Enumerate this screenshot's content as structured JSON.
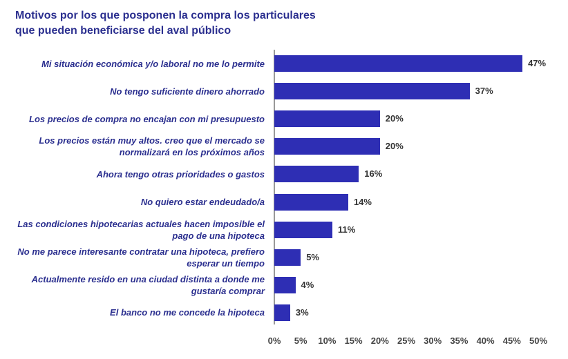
{
  "chart_data": {
    "type": "bar",
    "orientation": "horizontal",
    "title": "Motivos por los que posponen la compra los particulares que pueden beneficiarse del aval público",
    "categories": [
      "Mi situación económica y/o laboral no me lo permite",
      "No tengo suficiente dinero ahorrado",
      "Los precios de compra no encajan con mi presupuesto",
      "Los precios están muy altos. creo que el mercado se normalizará en los próximos años",
      "Ahora tengo otras prioridades o gastos",
      "No quiero estar endeudado/a",
      "Las condiciones hipotecarias actuales hacen imposible el pago de una hipoteca",
      "No me parece interesante contratar una hipoteca, prefiero esperar un tiempo",
      "Actualmente resido en una ciudad distinta a donde me gustaría comprar",
      "El banco no me concede la hipoteca"
    ],
    "values": [
      47,
      37,
      20,
      20,
      16,
      14,
      11,
      5,
      4,
      3
    ],
    "value_labels": [
      "47%",
      "37%",
      "20%",
      "20%",
      "16%",
      "14%",
      "11%",
      "5%",
      "4%",
      "3%"
    ],
    "color": "#2e2eb4",
    "xlim": [
      0,
      50
    ],
    "xticks": [
      {
        "value": 0,
        "label": "0%"
      },
      {
        "value": 5,
        "label": "5%"
      },
      {
        "value": 10,
        "label": "10%"
      },
      {
        "value": 15,
        "label": "15%"
      },
      {
        "value": 20,
        "label": "20%"
      },
      {
        "value": 25,
        "label": "25%"
      },
      {
        "value": 30,
        "label": "30%"
      },
      {
        "value": 35,
        "label": "35%"
      },
      {
        "value": 40,
        "label": "40%"
      },
      {
        "value": 45,
        "label": "45%"
      },
      {
        "value": 50,
        "label": "50%"
      }
    ]
  }
}
